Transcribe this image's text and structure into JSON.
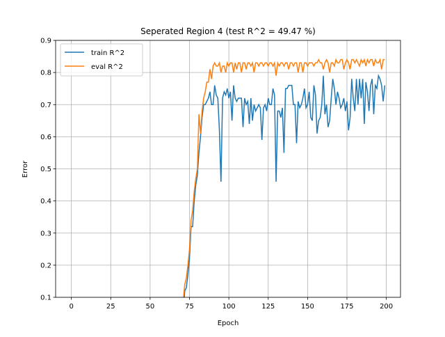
{
  "chart_data": {
    "type": "line",
    "title": "Seperated Region 4 (test R^2 = 49.47 %)",
    "x_label": "Epoch",
    "y_label": "Error",
    "x": [
      71,
      72,
      73,
      74,
      75,
      76,
      77,
      78,
      79,
      80,
      81,
      82,
      83,
      84,
      85,
      86,
      87,
      88,
      89,
      90,
      91,
      92,
      93,
      94,
      95,
      96,
      97,
      98,
      99,
      100,
      101,
      102,
      103,
      104,
      105,
      106,
      107,
      108,
      109,
      110,
      111,
      112,
      113,
      114,
      115,
      116,
      117,
      118,
      119,
      120,
      121,
      122,
      123,
      124,
      125,
      126,
      127,
      128,
      129,
      130,
      131,
      132,
      133,
      134,
      135,
      136,
      137,
      138,
      139,
      140,
      141,
      142,
      143,
      144,
      145,
      146,
      147,
      148,
      149,
      150,
      151,
      152,
      153,
      154,
      155,
      156,
      157,
      158,
      159,
      160,
      161,
      162,
      163,
      164,
      165,
      166,
      167,
      168,
      169,
      170,
      171,
      172,
      173,
      174,
      175,
      176,
      177,
      178,
      179,
      180,
      181,
      182,
      183,
      184,
      185,
      186,
      187,
      188,
      189,
      190,
      191,
      192,
      193,
      194,
      195,
      196,
      197,
      198,
      199
    ],
    "series": [
      {
        "name": "train R^2",
        "color": "#1f77b4",
        "values": [
          0.05,
          0.12,
          0.13,
          0.17,
          0.22,
          0.32,
          0.32,
          0.4,
          0.45,
          0.48,
          0.55,
          0.6,
          0.66,
          0.7,
          0.7,
          0.71,
          0.72,
          0.74,
          0.7,
          0.7,
          0.76,
          0.73,
          0.72,
          0.62,
          0.46,
          0.72,
          0.74,
          0.73,
          0.75,
          0.72,
          0.74,
          0.65,
          0.76,
          0.72,
          0.71,
          0.72,
          0.72,
          0.72,
          0.63,
          0.72,
          0.7,
          0.71,
          0.64,
          0.72,
          0.65,
          0.7,
          0.68,
          0.69,
          0.7,
          0.69,
          0.59,
          0.69,
          0.7,
          0.68,
          0.72,
          0.7,
          0.7,
          0.75,
          0.73,
          0.46,
          0.68,
          0.68,
          0.66,
          0.69,
          0.55,
          0.75,
          0.75,
          0.76,
          0.76,
          0.76,
          0.7,
          0.7,
          0.58,
          0.71,
          0.69,
          0.7,
          0.72,
          0.75,
          0.69,
          0.7,
          0.74,
          0.66,
          0.65,
          0.76,
          0.73,
          0.61,
          0.65,
          0.66,
          0.7,
          0.79,
          0.67,
          0.7,
          0.63,
          0.65,
          0.72,
          0.78,
          0.75,
          0.7,
          0.74,
          0.72,
          0.69,
          0.7,
          0.72,
          0.68,
          0.71,
          0.62,
          0.66,
          0.78,
          0.72,
          0.68,
          0.78,
          0.7,
          0.78,
          0.72,
          0.78,
          0.64,
          0.77,
          0.74,
          0.68,
          0.76,
          0.78,
          0.67,
          0.76,
          0.75,
          0.79,
          0.78,
          0.76,
          0.71,
          0.76
        ]
      },
      {
        "name": "eval R^2",
        "color": "#ff7f0e",
        "values": [
          0.09,
          0.14,
          0.16,
          0.2,
          0.25,
          0.34,
          0.37,
          0.43,
          0.47,
          0.5,
          0.67,
          0.61,
          0.68,
          0.72,
          0.74,
          0.77,
          0.77,
          0.81,
          0.78,
          0.82,
          0.83,
          0.82,
          0.82,
          0.83,
          0.8,
          0.82,
          0.82,
          0.8,
          0.83,
          0.82,
          0.83,
          0.83,
          0.8,
          0.83,
          0.81,
          0.83,
          0.83,
          0.8,
          0.83,
          0.83,
          0.81,
          0.83,
          0.83,
          0.82,
          0.83,
          0.8,
          0.83,
          0.83,
          0.82,
          0.83,
          0.83,
          0.82,
          0.83,
          0.83,
          0.82,
          0.83,
          0.83,
          0.82,
          0.83,
          0.79,
          0.83,
          0.82,
          0.83,
          0.83,
          0.82,
          0.83,
          0.83,
          0.81,
          0.83,
          0.83,
          0.82,
          0.83,
          0.83,
          0.8,
          0.83,
          0.83,
          0.8,
          0.83,
          0.83,
          0.82,
          0.83,
          0.83,
          0.83,
          0.82,
          0.83,
          0.83,
          0.84,
          0.83,
          0.83,
          0.81,
          0.83,
          0.84,
          0.83,
          0.8,
          0.83,
          0.83,
          0.82,
          0.84,
          0.83,
          0.83,
          0.84,
          0.84,
          0.81,
          0.83,
          0.84,
          0.83,
          0.81,
          0.84,
          0.84,
          0.83,
          0.84,
          0.83,
          0.82,
          0.84,
          0.83,
          0.84,
          0.82,
          0.84,
          0.83,
          0.84,
          0.84,
          0.82,
          0.84,
          0.83,
          0.83,
          0.84,
          0.81,
          0.84,
          0.84
        ]
      }
    ],
    "xlim": [
      -10,
      209
    ],
    "ylim": [
      0.1,
      0.9
    ],
    "xticks": [
      0,
      25,
      50,
      75,
      100,
      125,
      150,
      175,
      200
    ],
    "yticks": [
      0.1,
      0.2,
      0.3,
      0.4,
      0.5,
      0.6,
      0.7,
      0.8,
      0.9
    ],
    "grid": true,
    "legend": "upper-left"
  }
}
